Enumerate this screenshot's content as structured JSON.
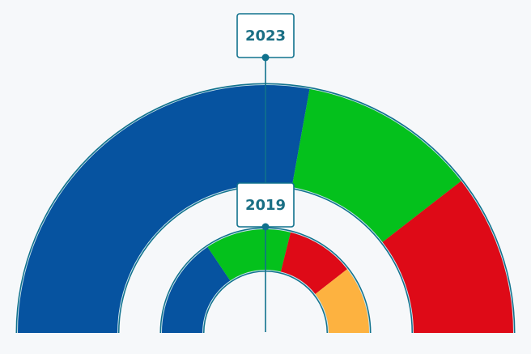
{
  "chart_data": {
    "type": "pie",
    "subtype": "semicircle-parliament-donut",
    "colors": {
      "blue": "#0653a0",
      "green": "#04c11c",
      "red": "#de0a17",
      "orange": "#fdb240",
      "outline": "#10728d",
      "inner_stroke": "#c7e1ea",
      "label_border": "#10728d",
      "label_text": "#1a6f84",
      "background": "#f6f8fa"
    },
    "charts": [
      {
        "year": "2023",
        "slices": [
          {
            "color": "blue",
            "value": 0.557
          },
          {
            "color": "green",
            "value": 0.233
          },
          {
            "color": "red",
            "value": 0.21
          }
        ]
      },
      {
        "year": "2019",
        "slices": [
          {
            "color": "blue",
            "value": 0.311
          },
          {
            "color": "green",
            "value": 0.267
          },
          {
            "color": "red",
            "value": 0.211
          },
          {
            "color": "orange",
            "value": 0.211
          }
        ]
      }
    ]
  }
}
